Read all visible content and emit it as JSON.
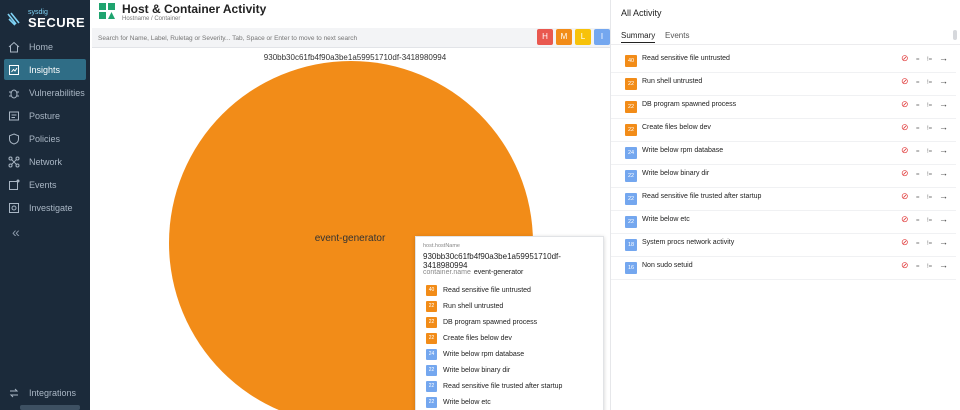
{
  "brand": {
    "small": "sysdig",
    "big": "SECURE"
  },
  "nav": [
    {
      "label": "Home",
      "icon": "home-icon"
    },
    {
      "label": "Insights",
      "icon": "insights-icon",
      "active": true
    },
    {
      "label": "Vulnerabilities",
      "icon": "bug-icon"
    },
    {
      "label": "Posture",
      "icon": "posture-icon"
    },
    {
      "label": "Policies",
      "icon": "shield-icon"
    },
    {
      "label": "Network",
      "icon": "network-icon"
    },
    {
      "label": "Events",
      "icon": "events-icon"
    },
    {
      "label": "Investigate",
      "icon": "investigate-icon"
    }
  ],
  "nav_collapse": "«",
  "nav_bottom": {
    "label": "Integrations",
    "icon": "integrations-icon"
  },
  "header": {
    "title": "Host & Container Activity",
    "breadcrumb": "Hostname  /  Container"
  },
  "search": {
    "placeholder": "Search for Name, Label, Ruletag or Severity... Tab, Space or Enter to move to next search"
  },
  "severity_buttons": [
    {
      "label": "H",
      "color": "#e9584f"
    },
    {
      "label": "M",
      "color": "#f28c18"
    },
    {
      "label": "L",
      "color": "#f7c20a"
    },
    {
      "label": "I",
      "color": "#74a7ef"
    }
  ],
  "chart": {
    "title": "930bb30c61fb4f90a3be1a59951710df-3418980994",
    "circle_label": "event-generator"
  },
  "tooltip": {
    "host_label": "host.hostName",
    "host_value": "930bb30c61fb4f90a3be1a59951710df-3418980994",
    "container_key": "container.name",
    "container_value": "event-generator",
    "rows": [
      {
        "count": "40",
        "name": "Read sensitive file untrusted",
        "color": "#f28c18"
      },
      {
        "count": "22",
        "name": "Run shell untrusted",
        "color": "#f28c18"
      },
      {
        "count": "22",
        "name": "DB program spawned process",
        "color": "#f28c18"
      },
      {
        "count": "22",
        "name": "Create files below dev",
        "color": "#f28c18"
      },
      {
        "count": "24",
        "name": "Write below rpm database",
        "color": "#74a7ef"
      },
      {
        "count": "22",
        "name": "Write below binary dir",
        "color": "#74a7ef"
      },
      {
        "count": "22",
        "name": "Read sensitive file trusted after startup",
        "color": "#74a7ef"
      },
      {
        "count": "22",
        "name": "Write below etc",
        "color": "#74a7ef"
      }
    ]
  },
  "panel": {
    "title": "All Activity",
    "tabs": [
      {
        "label": "Summary",
        "active": true
      },
      {
        "label": "Events",
        "active": false
      }
    ],
    "events": [
      {
        "count": "40",
        "name": "Read sensitive file untrusted",
        "color": "#f28c18"
      },
      {
        "count": "22",
        "name": "Run shell untrusted",
        "color": "#f28c18"
      },
      {
        "count": "22",
        "name": "DB program spawned process",
        "color": "#f28c18"
      },
      {
        "count": "22",
        "name": "Create files below dev",
        "color": "#f28c18"
      },
      {
        "count": "24",
        "name": "Write below rpm database",
        "color": "#74a7ef"
      },
      {
        "count": "22",
        "name": "Write below binary dir",
        "color": "#74a7ef"
      },
      {
        "count": "22",
        "name": "Read sensitive file trusted after startup",
        "color": "#74a7ef"
      },
      {
        "count": "22",
        "name": "Write below etc",
        "color": "#74a7ef"
      },
      {
        "count": "18",
        "name": "System procs network activity",
        "color": "#74a7ef"
      },
      {
        "count": "16",
        "name": "Non sudo setuid",
        "color": "#74a7ef"
      }
    ],
    "row_actions": {
      "block": "⊘",
      "eq": "=",
      "neq": "!=",
      "arrow": "→"
    }
  }
}
